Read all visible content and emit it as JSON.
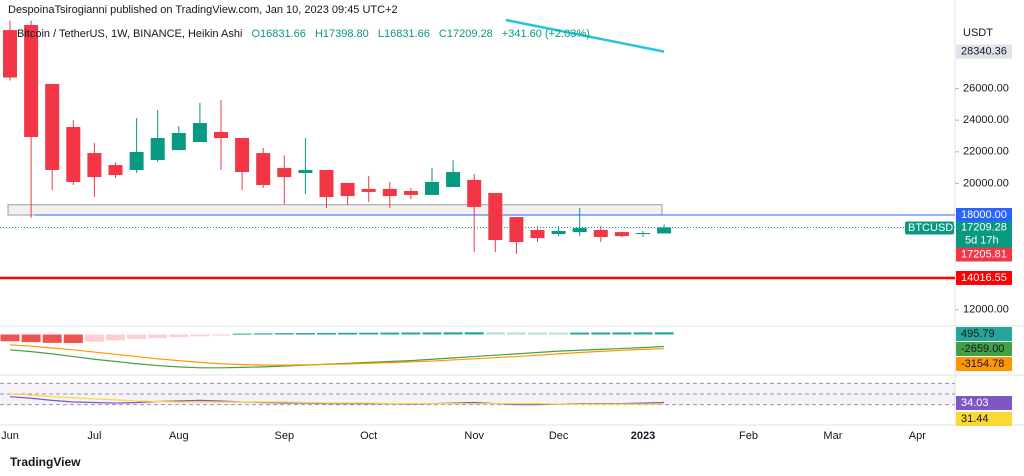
{
  "header": {
    "publisher": "DespoinaTsirogianni published on TradingView.com, Jan 10, 2023 09:45 UTC+2"
  },
  "chart_data": {
    "type": "candlestick",
    "title": "Bitcoin / TetherUS, 1W, BINANCE, Heikin Ashi",
    "ohlc_labels": [
      "O16831.66",
      "H17398.80",
      "L16831.66",
      "C17209.28"
    ],
    "change": "+341.60 (+2.03%)",
    "currency": "USDT",
    "symbol": "BTCUSDT",
    "countdown": "5d 17h",
    "categories": [
      "Jun",
      null,
      null,
      null,
      "Jul",
      null,
      null,
      null,
      "Aug",
      null,
      null,
      null,
      null,
      "Sep",
      null,
      null,
      null,
      "Oct",
      null,
      null,
      null,
      null,
      "Nov",
      null,
      null,
      null,
      "Dec",
      null,
      null,
      null,
      "2023",
      null,
      null,
      null,
      null,
      "Feb",
      null,
      null,
      null,
      "Mar",
      null,
      null,
      null,
      "Apr",
      null
    ],
    "open": [
      29700,
      30025,
      26290,
      23570,
      21920,
      21160,
      20850,
      21480,
      22110,
      22620,
      23250,
      22870,
      21920,
      20970,
      20660,
      20850,
      20030,
      19650,
      19650,
      19520,
      19270,
      19770,
      20220,
      19390,
      17870,
      17050,
      16800,
      16920,
      17050,
      16920,
      16800,
      16831.66,
      null,
      null,
      null,
      null,
      null,
      null,
      null,
      null,
      null,
      null,
      null,
      null,
      null
    ],
    "high": [
      30300,
      30300,
      26290,
      24000,
      22560,
      21350,
      24140,
      24650,
      23630,
      25090,
      25280,
      22870,
      22240,
      21790,
      22870,
      20850,
      20030,
      20480,
      20100,
      19700,
      21000,
      21480,
      20600,
      19390,
      17870,
      17300,
      17300,
      18440,
      17300,
      16920,
      16990,
      17398.8,
      null,
      null,
      null,
      null,
      null,
      null,
      null,
      null,
      null,
      null,
      null,
      null,
      null
    ],
    "low": [
      26500,
      17810,
      19580,
      19900,
      19140,
      20340,
      20660,
      21350,
      22110,
      22620,
      20850,
      19580,
      19710,
      18700,
      19330,
      18450,
      18640,
      18830,
      18450,
      19010,
      19270,
      19770,
      15660,
      15660,
      15530,
      16290,
      16670,
      16670,
      16290,
      16610,
      16610,
      16831.66,
      null,
      null,
      null,
      null,
      null,
      null,
      null,
      null,
      null,
      null,
      null,
      null,
      null
    ],
    "close": [
      26700,
      22937,
      20850,
      20090,
      20400,
      20530,
      21990,
      22870,
      23190,
      23820,
      22870,
      20720,
      19900,
      20400,
      20850,
      19140,
      19200,
      19460,
      19200,
      19270,
      20090,
      20720,
      18510,
      16420,
      16290,
      16540,
      16990,
      17180,
      16610,
      16670,
      16860,
      17209.28,
      null,
      null,
      null,
      null,
      null,
      null,
      null,
      null,
      null,
      null,
      null,
      null,
      null
    ],
    "up_color": "#089981",
    "down_color": "#f23645",
    "ylim": [
      11040,
      30340
    ],
    "yticks": [
      {
        "value": 12000,
        "label": "12000.00"
      },
      {
        "value": 20000,
        "label": "20000.00"
      },
      {
        "value": 22000,
        "label": "22000.00"
      },
      {
        "value": 24000,
        "label": "24000.00"
      },
      {
        "value": 26000,
        "label": "26000.00"
      }
    ],
    "trendline": {
      "x": [
        23.5,
        31
      ],
      "values": [
        30340,
        28340.36
      ],
      "color": "#26c6da"
    },
    "zone": {
      "low": 18000,
      "high": 18650,
      "color": "#9e9e9e"
    },
    "levels": [
      {
        "value": 18000,
        "label": "18000.00",
        "color": "#2962ff"
      },
      {
        "value": 14016.55,
        "color": "#ff0000"
      }
    ],
    "price_labels": [
      {
        "value": 17205.81,
        "color": "#f23645"
      }
    ],
    "indicators": {
      "macd": {
        "ylim": [
          -9000,
          1000
        ],
        "histogram": {
          "values": [
            -1500,
            -1700,
            -1850,
            -1900,
            -1600,
            -1300,
            -1000,
            -800,
            -600,
            -400,
            -250,
            200,
            250,
            300,
            330,
            350,
            380,
            400,
            420,
            440,
            460,
            480,
            500,
            470,
            440,
            420,
            410,
            420,
            440,
            460,
            480,
            495.79
          ],
          "colors": [
            "#ef5350",
            "#ffcdd2",
            "#26a69a",
            "#b2dfdb"
          ]
        },
        "series": [
          {
            "color": "#43a047",
            "last_label": "-2659.00",
            "values": [
              -3400,
              -3800,
              -4300,
              -4900,
              -5500,
              -6000,
              -6500,
              -6900,
              -7200,
              -7400,
              -7400,
              -7300,
              -7200,
              -7000,
              -6800,
              -6600,
              -6400,
              -6200,
              -6000,
              -5800,
              -5500,
              -5200,
              -4900,
              -4600,
              -4300,
              -4000,
              -3700,
              -3500,
              -3300,
              -3100,
              -2900,
              -2659
            ]
          },
          {
            "color": "#ff9800",
            "values": [
              -2300,
              -2600,
              -3000,
              -3400,
              -3900,
              -4400,
              -4900,
              -5400,
              -5800,
              -6200,
              -6500,
              -6700,
              -6800,
              -6800,
              -6750,
              -6650,
              -6550,
              -6400,
              -6250,
              -6100,
              -5900,
              -5650,
              -5400,
              -5150,
              -4900,
              -4600,
              -4300,
              -4000,
              -3750,
              -3500,
              -3300,
              -3154.78
            ]
          }
        ]
      },
      "rsi": {
        "ylim": [
          20,
          80
        ],
        "bands": [
          30,
          50,
          70
        ],
        "band_color": "#7e57c2",
        "series": [
          {
            "color": "#7e57c2",
            "values": [
              45,
              42,
              38,
              35,
              34,
              33,
              34,
              36,
              37,
              38,
              37,
              35,
              34,
              33,
              33,
              32,
              32,
              32,
              32,
              31,
              32,
              33,
              34,
              32,
              30,
              30,
              31,
              32,
              32,
              32,
              33,
              34.03
            ]
          },
          {
            "color": "#fdd835",
            "values": [
              50,
              48,
              45,
              43,
              41,
              39,
              37,
              36,
              35,
              35,
              35,
              35,
              35,
              35,
              34,
              33,
              33,
              33,
              32,
              32,
              32,
              32,
              32,
              32,
              32,
              32,
              31,
              31,
              31,
              31,
              31,
              31.44
            ]
          }
        ]
      }
    }
  },
  "footer": {
    "brand": "TradingView"
  }
}
